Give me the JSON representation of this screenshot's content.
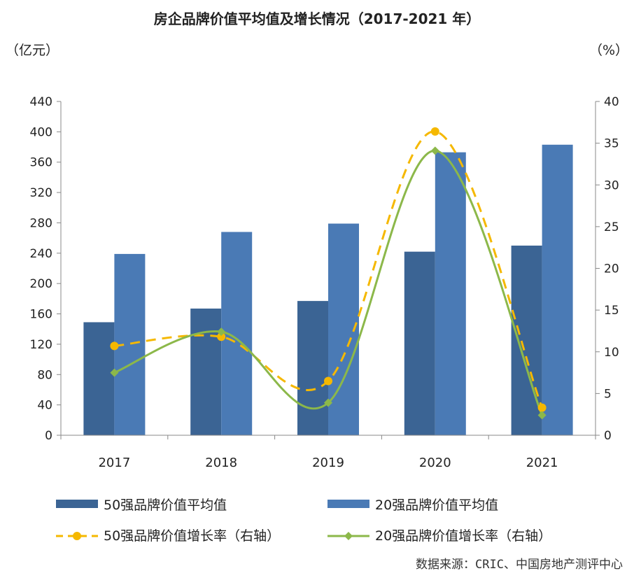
{
  "chart_data": {
    "type": "bar",
    "title": "房企品牌价值平均值及增长情况（2017-2021 年）",
    "ylabel_left": "（亿元）",
    "ylabel_right": "（%）",
    "categories": [
      "2017",
      "2018",
      "2019",
      "2020",
      "2021"
    ],
    "ylim_left": [
      0,
      440
    ],
    "yticks_left": [
      0,
      40,
      80,
      120,
      160,
      200,
      240,
      280,
      320,
      360,
      400,
      440
    ],
    "ylim_right": [
      0,
      40
    ],
    "yticks_right": [
      0,
      5,
      10,
      15,
      20,
      25,
      30,
      35,
      40
    ],
    "bar_series": [
      {
        "name": "50强品牌价值平均值",
        "color": "#3b6494",
        "values": [
          149,
          167,
          177,
          242,
          250
        ]
      },
      {
        "name": "20强品牌价值平均值",
        "color": "#4a7ab5",
        "values": [
          239,
          268,
          279,
          373,
          383
        ]
      }
    ],
    "line_series": [
      {
        "name": "50强品牌价值增长率（右轴）",
        "color": "#f5b800",
        "axis": "right",
        "style": "dashed",
        "marker": "circle",
        "values": [
          10.7,
          11.8,
          6.5,
          36.4,
          3.3
        ]
      },
      {
        "name": "20强品牌价值增长率（右轴）",
        "color": "#8cb84a",
        "axis": "right",
        "style": "solid",
        "marker": "diamond",
        "values": [
          7.5,
          12.4,
          3.9,
          34.1,
          2.4
        ]
      }
    ],
    "source": "数据来源：CRIC、中国房地产测评中心",
    "legend_position": "bottom",
    "grid": false
  }
}
